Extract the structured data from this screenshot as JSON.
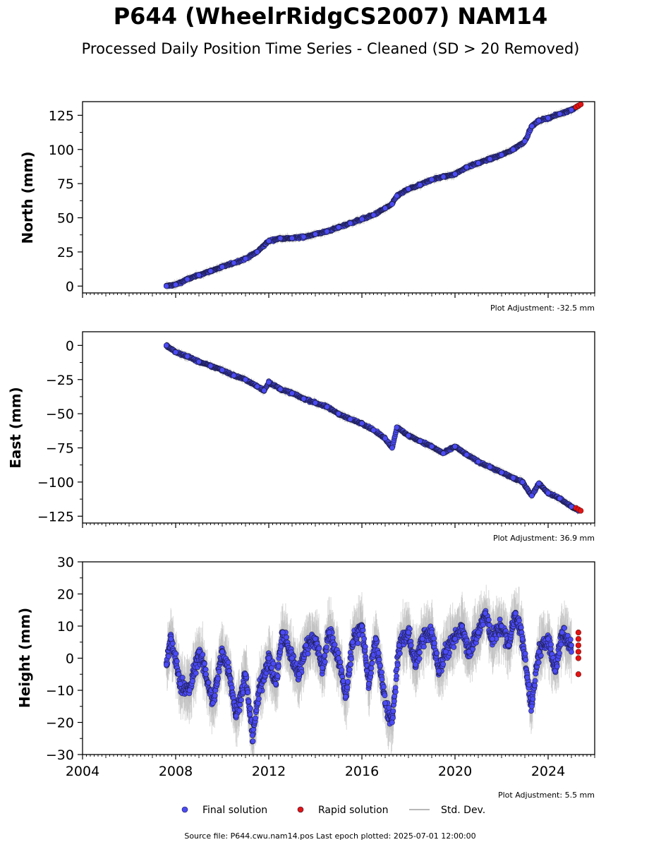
{
  "title": "P644 (WheelrRidgCS2007) NAM14",
  "subtitle": "Processed Daily Position Time Series - Cleaned (SD > 20 Removed)",
  "source": "Source file: P644.cwu.nam14.pos  Last epoch plotted: 2025-07-01 12:00:00",
  "legend": {
    "final": "Final solution",
    "rapid": "Rapid solution",
    "std": "Std. Dev."
  },
  "colors": {
    "final": "#4b4bf5",
    "rapid": "#e31414",
    "std": "#b8b8b8",
    "marker_edge": "#1a1a40"
  },
  "chart_data": [
    {
      "type": "scatter",
      "id": "north",
      "ylabel": "North (mm)",
      "adjustment": "Plot Adjustment: -32.5 mm",
      "xlim": [
        2004,
        2026
      ],
      "ylim": [
        -5,
        135
      ],
      "yticks": [
        0,
        25,
        50,
        75,
        100,
        125
      ],
      "ytick_labels": [
        "0",
        "25",
        "50",
        "75",
        "100",
        "125"
      ],
      "series": [
        {
          "name": "Final solution",
          "x": [
            2007.6,
            2008.0,
            2008.5,
            2009.0,
            2009.5,
            2010.0,
            2010.5,
            2011.0,
            2011.5,
            2012.0,
            2012.5,
            2013.0,
            2013.5,
            2014.0,
            2014.5,
            2015.0,
            2015.5,
            2016.0,
            2016.5,
            2017.0,
            2017.3,
            2017.5,
            2018.0,
            2018.5,
            2019.0,
            2019.5,
            2020.0,
            2020.5,
            2021.0,
            2021.5,
            2022.0,
            2022.5,
            2023.0,
            2023.3,
            2023.6,
            2024.0,
            2024.5,
            2025.0,
            2025.3
          ],
          "y": [
            0,
            1,
            5,
            8,
            11,
            14,
            17,
            20,
            25,
            33,
            35,
            35,
            36,
            38,
            40,
            43,
            46,
            49,
            52,
            57,
            60,
            66,
            71,
            74,
            78,
            80,
            82,
            87,
            90,
            93,
            96,
            100,
            106,
            117,
            121,
            123,
            126,
            129,
            132
          ]
        },
        {
          "name": "Rapid solution",
          "x": [
            2025.2,
            2025.3,
            2025.4
          ],
          "y": [
            131,
            132,
            133
          ]
        }
      ]
    },
    {
      "type": "scatter",
      "id": "east",
      "ylabel": "East (mm)",
      "adjustment": "Plot Adjustment: 36.9 mm",
      "xlim": [
        2004,
        2026
      ],
      "ylim": [
        -130,
        10
      ],
      "yticks": [
        -125,
        -100,
        -75,
        -50,
        -25,
        0
      ],
      "ytick_labels": [
        "−125",
        "−100",
        "−75",
        "−50",
        "−25",
        "0"
      ],
      "series": [
        {
          "name": "Final solution",
          "x": [
            2007.6,
            2008.0,
            2008.5,
            2009.0,
            2009.5,
            2010.0,
            2010.5,
            2011.0,
            2011.5,
            2011.8,
            2012.0,
            2012.5,
            2013.0,
            2013.5,
            2014.0,
            2014.5,
            2015.0,
            2015.5,
            2016.0,
            2016.5,
            2017.0,
            2017.3,
            2017.5,
            2018.0,
            2018.5,
            2019.0,
            2019.5,
            2020.0,
            2020.5,
            2021.0,
            2021.5,
            2022.0,
            2022.5,
            2022.9,
            2023.3,
            2023.6,
            2024.0,
            2024.5,
            2025.0,
            2025.3
          ],
          "y": [
            0,
            -5,
            -8,
            -12,
            -15,
            -18,
            -22,
            -25,
            -30,
            -33,
            -27,
            -32,
            -35,
            -39,
            -42,
            -45,
            -50,
            -54,
            -57,
            -62,
            -68,
            -75,
            -60,
            -66,
            -70,
            -74,
            -79,
            -74,
            -80,
            -85,
            -89,
            -93,
            -97,
            -100,
            -110,
            -101,
            -108,
            -112,
            -118,
            -121
          ]
        },
        {
          "name": "Rapid solution",
          "x": [
            2025.2,
            2025.3,
            2025.4
          ],
          "y": [
            -119,
            -120,
            -121
          ]
        }
      ]
    },
    {
      "type": "scatter",
      "id": "height",
      "ylabel": "Height (mm)",
      "adjustment": "Plot Adjustment: 5.5 mm",
      "xlabel": "",
      "xlim": [
        2004,
        2026
      ],
      "ylim": [
        -30,
        30
      ],
      "yticks": [
        -30,
        -20,
        -10,
        0,
        10,
        20,
        30
      ],
      "ytick_labels": [
        "−30",
        "−20",
        "−10",
        "0",
        "10",
        "20",
        "30"
      ],
      "xticks": [
        2004,
        2008,
        2012,
        2016,
        2020,
        2024
      ],
      "xtick_labels": [
        "2004",
        "2008",
        "2012",
        "2016",
        "2020",
        "2024"
      ],
      "series": [
        {
          "name": "Final solution",
          "x": [
            2007.6,
            2007.8,
            2008.2,
            2008.6,
            2009.0,
            2009.3,
            2009.6,
            2010.0,
            2010.3,
            2010.6,
            2011.0,
            2011.3,
            2011.6,
            2012.0,
            2012.3,
            2012.6,
            2013.0,
            2013.3,
            2013.6,
            2014.0,
            2014.3,
            2014.6,
            2015.0,
            2015.3,
            2015.6,
            2016.0,
            2016.3,
            2016.6,
            2017.0,
            2017.3,
            2017.6,
            2018.0,
            2018.3,
            2018.6,
            2019.0,
            2019.3,
            2019.6,
            2020.0,
            2020.3,
            2020.6,
            2021.0,
            2021.3,
            2021.6,
            2022.0,
            2022.3,
            2022.6,
            2022.9,
            2023.1,
            2023.3,
            2023.6,
            2024.0,
            2024.3,
            2024.6,
            2025.0
          ],
          "y": [
            -2,
            6,
            -8,
            -10,
            2,
            -5,
            -14,
            2,
            -4,
            -18,
            -5,
            -24,
            -10,
            0,
            -8,
            8,
            0,
            -5,
            4,
            6,
            -3,
            8,
            0,
            -12,
            5,
            10,
            -8,
            6,
            -14,
            -20,
            4,
            8,
            -2,
            6,
            8,
            -4,
            2,
            6,
            10,
            2,
            8,
            14,
            6,
            10,
            4,
            14,
            6,
            -6,
            -15,
            2,
            6,
            -4,
            8,
            4
          ]
        },
        {
          "name": "Rapid solution",
          "x": [
            2025.3,
            2025.3,
            2025.3,
            2025.3,
            2025.3,
            2025.3
          ],
          "y": [
            8,
            6,
            4,
            2,
            0,
            -5
          ]
        }
      ]
    }
  ]
}
